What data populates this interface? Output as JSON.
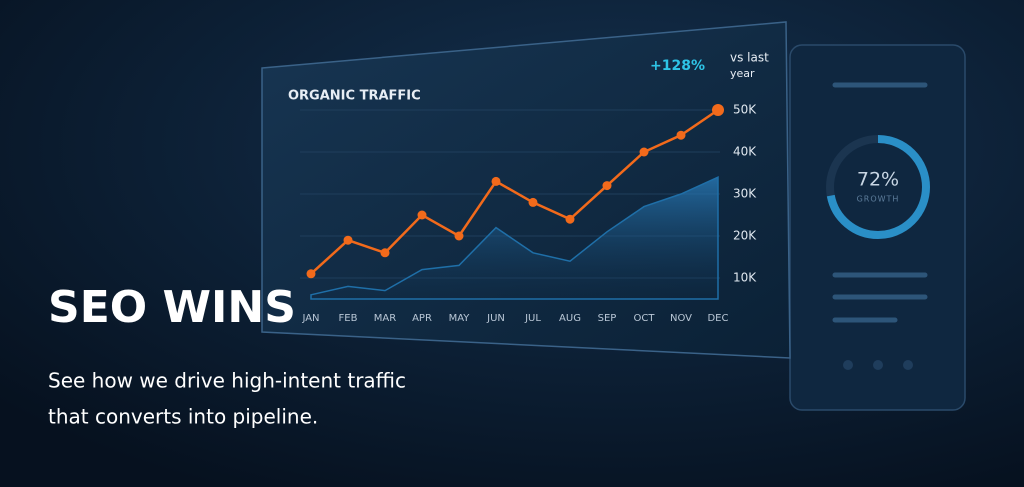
{
  "chart_data": {
    "type": "line",
    "title": "ORGANIC TRAFFIC",
    "categories": [
      "JAN",
      "FEB",
      "MAR",
      "APR",
      "MAY",
      "JUN",
      "JUL",
      "AUG",
      "SEP",
      "OCT",
      "NOV",
      "DEC"
    ],
    "series": [
      {
        "color": "#1f6fa8",
        "fill": true,
        "values": [
          6000,
          8000,
          7000,
          12000,
          13000,
          22000,
          16000,
          14000,
          21000,
          27000,
          30000,
          34000
        ]
      },
      {
        "color": "#f26a1b",
        "values": [
          11000,
          19000,
          16000,
          25000,
          20000,
          33000,
          28000,
          24000,
          32000,
          40000,
          44000,
          50000
        ]
      }
    ],
    "ylim": [
      5000,
      55000
    ],
    "yticks": [
      {
        "value": 10000,
        "label": "10K"
      },
      {
        "value": 20000,
        "label": "20K"
      },
      {
        "value": 30000,
        "label": "30K"
      },
      {
        "value": 40000,
        "label": "40K"
      },
      {
        "value": 50000,
        "label": "50K"
      }
    ],
    "grid": true,
    "change": "+128%",
    "change_note": [
      "vs last",
      "year"
    ]
  },
  "card": {
    "value": 72,
    "value_label": "72%",
    "caption": "GROWTH"
  },
  "hero": {
    "title": "SEO WINS",
    "subtitle": [
      "See how we drive high-intent traffic",
      "that converts into pipeline."
    ]
  }
}
